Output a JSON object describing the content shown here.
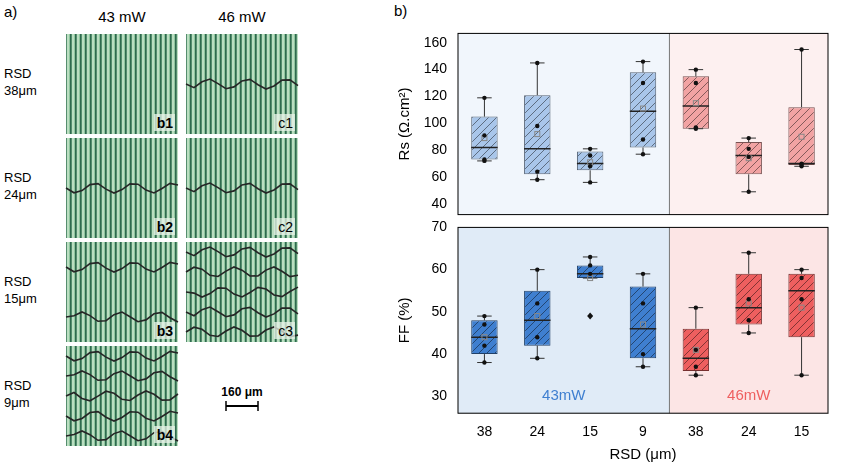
{
  "panel_labels": [
    "a)",
    "b)"
  ],
  "panel_a": {
    "columns": [
      "43 mW",
      "46 mW"
    ],
    "rows": [
      {
        "label": "RSD 38μm",
        "images": [
          "b1",
          "c1"
        ]
      },
      {
        "label": "RSD 24μm",
        "images": [
          "b2",
          "c2"
        ]
      },
      {
        "label": "RSD 15μm",
        "images": [
          "b3",
          "c3"
        ]
      },
      {
        "label": "RSD 9μm",
        "images": [
          "b4",
          null
        ]
      }
    ],
    "scale_bar": "160 μm"
  },
  "chart_data": [
    {
      "type": "box",
      "y_label": "Rs (Ω.cm²)",
      "categories": [
        38,
        24,
        15,
        9,
        38,
        24,
        15
      ],
      "ylim": [
        32,
        167
      ],
      "yticks": [
        40,
        60,
        80,
        100,
        120,
        140,
        160
      ],
      "tick_labels": "y",
      "series": [
        {
          "color": "#a9c6ea",
          "values": [
            {
              "low": 72,
              "q1": 73,
              "median": 82,
              "q3": 105,
              "high": 119,
              "mean": 89,
              "points": [
                72,
                73,
                91,
                119
              ]
            },
            {
              "low": 58,
              "q1": 62,
              "median": 81,
              "q3": 121,
              "high": 145,
              "mean": 92,
              "points": [
                58,
                64,
                98,
                145
              ]
            },
            {
              "low": 56,
              "q1": 65,
              "median": 70,
              "q3": 79,
              "high": 81,
              "mean": 71,
              "points": [
                56,
                68,
                76,
                81
              ]
            },
            {
              "low": 77,
              "q1": 82,
              "median": 109,
              "q3": 138,
              "high": 146,
              "mean": 111,
              "points": [
                77,
                88,
                130,
                146
              ]
            },
            null,
            null,
            null
          ]
        },
        {
          "color": "#f2a3a3",
          "values": [
            null,
            null,
            null,
            null,
            {
              "low": 96,
              "q1": 96,
              "median": 113,
              "q3": 135,
              "high": 140,
              "mean": 115,
              "points": [
                96,
                97,
                130,
                140
              ]
            },
            {
              "low": 49,
              "q1": 62,
              "median": 76,
              "q3": 86,
              "high": 89,
              "mean": 74,
              "points": [
                49,
                75,
                81,
                89
              ]
            },
            {
              "low": 68,
              "q1": 69,
              "median": 70,
              "q3": 112,
              "high": 155,
              "mean": 90,
              "points": [
                68,
                69,
                70,
                155
              ]
            }
          ]
        }
      ]
    },
    {
      "type": "box",
      "y_label": "FF (%)",
      "x_label": "RSD (μm)",
      "categories": [
        38,
        24,
        15,
        9,
        38,
        24,
        15
      ],
      "ylim": [
        26,
        70
      ],
      "yticks": [
        30,
        40,
        50,
        60,
        70
      ],
      "series": [
        {
          "name": "43mW",
          "color": "#3f7fd0",
          "values": [
            {
              "low": 38,
              "q1": 40,
              "median": 44,
              "q3": 48,
              "high": 49,
              "mean": 44,
              "points": [
                38,
                42,
                47,
                49
              ]
            },
            {
              "low": 39,
              "q1": 42,
              "median": 48,
              "q3": 55,
              "high": 60,
              "mean": 49,
              "points": [
                39,
                44,
                52,
                60
              ]
            },
            {
              "low": 58,
              "q1": 58,
              "median": 59,
              "q3": 61,
              "high": 63,
              "mean": 58,
              "points": [
                49,
                59,
                61,
                63
              ]
            },
            {
              "low": 37,
              "q1": 39,
              "median": 46,
              "q3": 56,
              "high": 59,
              "mean": 47,
              "points": [
                37,
                40,
                52,
                59
              ]
            },
            null,
            null,
            null
          ]
        },
        {
          "name": "46mW",
          "color": "#ee5f5f",
          "values": [
            null,
            null,
            null,
            null,
            {
              "low": 35,
              "q1": 36,
              "median": 39,
              "q3": 46,
              "high": 51,
              "mean": 41,
              "points": [
                35,
                37,
                41,
                51
              ]
            },
            {
              "low": 45,
              "q1": 47,
              "median": 51,
              "q3": 59,
              "high": 64,
              "mean": 52,
              "points": [
                45,
                48,
                53,
                64
              ]
            },
            {
              "low": 35,
              "q1": 44,
              "median": 55,
              "q3": 59,
              "high": 60,
              "mean": 51,
              "points": [
                35,
                53,
                58,
                60
              ]
            }
          ]
        }
      ]
    }
  ]
}
